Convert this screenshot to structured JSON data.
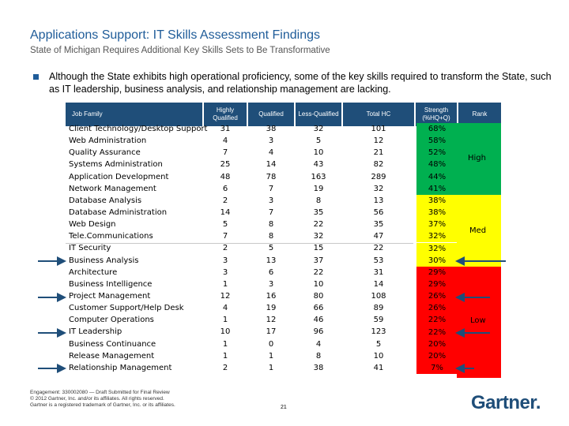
{
  "title": "Applications Support:  IT Skills Assessment Findings",
  "subtitle": "State of Michigan Requires Additional Key Skills Sets to Be Transformative",
  "bullet": "Although the State exhibits high operational proficiency, some of the key skills required to transform the State, such as IT leadership, business analysis, and relationship management are lacking.",
  "table": {
    "headers": {
      "job_family": "Job Family",
      "highly_qualified": "Highly Qualified",
      "qualified": "Qualified",
      "less_qualified": "Less-Qualified",
      "total_hc": "Total HC",
      "strength": "Strength (%HQ+Q)",
      "rank": "Rank"
    },
    "rows": [
      {
        "job": "Client Technology/Desktop Support",
        "hq": "31",
        "q": "38",
        "lq": "32",
        "hc": "101",
        "s": "68%"
      },
      {
        "job": "Web Administration",
        "hq": "4",
        "q": "3",
        "lq": "5",
        "hc": "12",
        "s": "58%"
      },
      {
        "job": "Quality Assurance",
        "hq": "7",
        "q": "4",
        "lq": "10",
        "hc": "21",
        "s": "52%"
      },
      {
        "job": "Systems Administration",
        "hq": "25",
        "q": "14",
        "lq": "43",
        "hc": "82",
        "s": "48%"
      },
      {
        "job": "Application Development",
        "hq": "48",
        "q": "78",
        "lq": "163",
        "hc": "289",
        "s": "44%"
      },
      {
        "job": "Network Management",
        "hq": "6",
        "q": "7",
        "lq": "19",
        "hc": "32",
        "s": "41%"
      },
      {
        "job": "Database Analysis",
        "hq": "2",
        "q": "3",
        "lq": "8",
        "hc": "13",
        "s": "38%"
      },
      {
        "job": "Database Administration",
        "hq": "14",
        "q": "7",
        "lq": "35",
        "hc": "56",
        "s": "38%"
      },
      {
        "job": "Web Design",
        "hq": "5",
        "q": "8",
        "lq": "22",
        "hc": "35",
        "s": "37%"
      },
      {
        "job": "Tele.Communications",
        "hq": "7",
        "q": "8",
        "lq": "32",
        "hc": "47",
        "s": "32%"
      },
      {
        "job": "IT Security",
        "hq": "2",
        "q": "5",
        "lq": "15",
        "hc": "22",
        "s": "32%"
      },
      {
        "job": "Business Analysis",
        "hq": "3",
        "q": "13",
        "lq": "37",
        "hc": "53",
        "s": "30%"
      },
      {
        "job": "Architecture",
        "hq": "3",
        "q": "6",
        "lq": "22",
        "hc": "31",
        "s": "29%"
      },
      {
        "job": "Business Intelligence",
        "hq": "1",
        "q": "3",
        "lq": "10",
        "hc": "14",
        "s": "29%"
      },
      {
        "job": "Project Management",
        "hq": "12",
        "q": "16",
        "lq": "80",
        "hc": "108",
        "s": "26%"
      },
      {
        "job": "Customer Support/Help Desk",
        "hq": "4",
        "q": "19",
        "lq": "66",
        "hc": "89",
        "s": "26%"
      },
      {
        "job": "Computer Operations",
        "hq": "1",
        "q": "12",
        "lq": "46",
        "hc": "59",
        "s": "22%"
      },
      {
        "job": "IT Leadership",
        "hq": "10",
        "q": "17",
        "lq": "96",
        "hc": "123",
        "s": "22%"
      },
      {
        "job": "Business Continuance",
        "hq": "1",
        "q": "0",
        "lq": "4",
        "hc": "5",
        "s": "20%"
      },
      {
        "job": "Release Management",
        "hq": "1",
        "q": "1",
        "lq": "8",
        "hc": "10",
        "s": "20%"
      },
      {
        "job": "Relationship Management",
        "hq": "2",
        "q": "1",
        "lq": "38",
        "hc": "41",
        "s": "7%"
      }
    ],
    "rank_labels": {
      "high": "High",
      "med": "Med",
      "low": "Low"
    }
  },
  "colors": {
    "high": "#00b050",
    "med": "#ffff00",
    "low": "#ff0000",
    "header": "#1f4e79",
    "arrow": "#1f4e79"
  },
  "footer": {
    "line1": "Engagement: 330002080 — Draft Submitted for Final Review",
    "line2": "© 2012 Gartner, Inc. and/or its affiliates. All rights reserved.",
    "line3": "Gartner is a registered trademark of Gartner, Inc. or its affiliates."
  },
  "page_number": "21",
  "logo": "Gartner."
}
